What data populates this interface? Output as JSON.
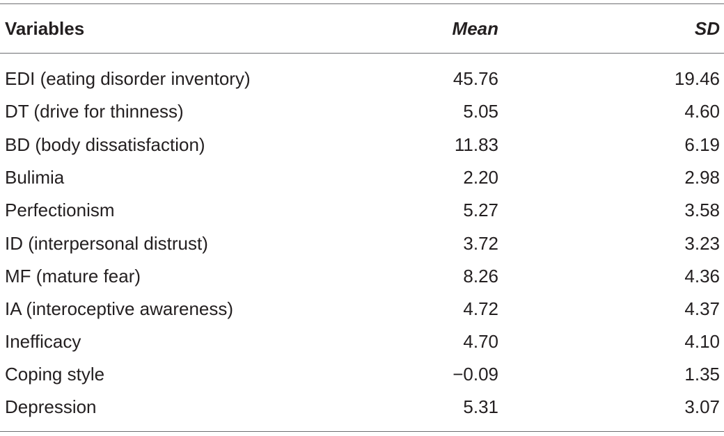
{
  "table": {
    "headers": {
      "variables": "Variables",
      "mean": "Mean",
      "sd": "SD"
    },
    "rows": [
      {
        "variable": "EDI (eating disorder inventory)",
        "mean": "45.76",
        "sd": "19.46"
      },
      {
        "variable": "DT (drive for thinness)",
        "mean": "5.05",
        "sd": "4.60"
      },
      {
        "variable": "BD (body dissatisfaction)",
        "mean": "11.83",
        "sd": "6.19"
      },
      {
        "variable": "Bulimia",
        "mean": "2.20",
        "sd": "2.98"
      },
      {
        "variable": "Perfectionism",
        "mean": "5.27",
        "sd": "3.58"
      },
      {
        "variable": "ID (interpersonal distrust)",
        "mean": "3.72",
        "sd": "3.23"
      },
      {
        "variable": "MF (mature fear)",
        "mean": "8.26",
        "sd": "4.36"
      },
      {
        "variable": "IA (interoceptive awareness)",
        "mean": "4.72",
        "sd": "4.37"
      },
      {
        "variable": "Inefficacy",
        "mean": "4.70",
        "sd": "4.10"
      },
      {
        "variable": "Coping style",
        "mean": "−0.09",
        "sd": "1.35"
      },
      {
        "variable": "Depression",
        "mean": "5.31",
        "sd": "3.07"
      }
    ]
  }
}
